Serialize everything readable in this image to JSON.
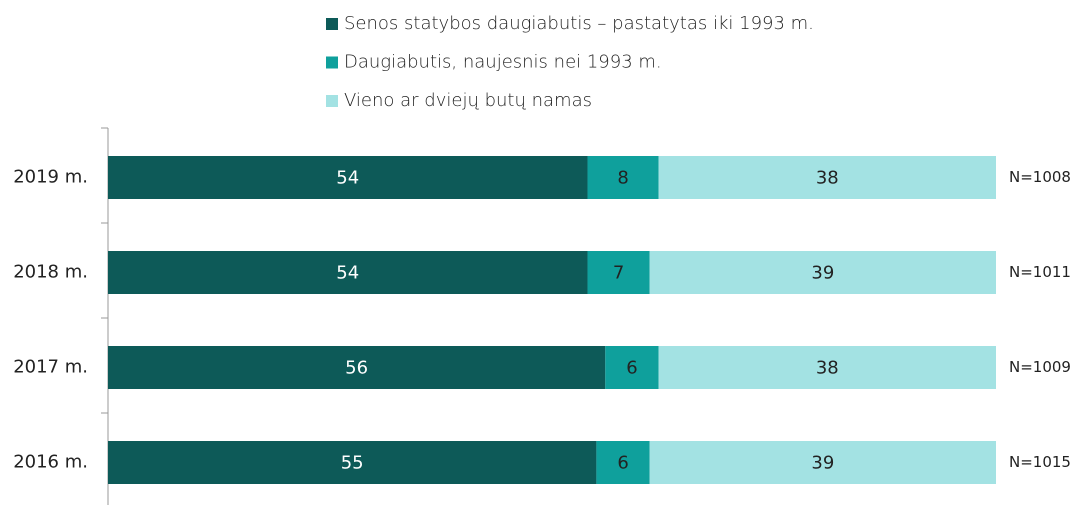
{
  "chart_data": {
    "type": "stacked-bar-horizontal",
    "categories": [
      "2019 m.",
      "2018 m.",
      "2017 m.",
      "2016 m."
    ],
    "series": [
      {
        "name": "Senos statybos daugiabutis – pastatytas iki 1993 m.",
        "color": "#0d5a58",
        "values": [
          54,
          54,
          56,
          55
        ]
      },
      {
        "name": "Daugiabutis, naujesnis nei 1993 m.",
        "color": "#0fa09c",
        "values": [
          8,
          7,
          6,
          6
        ]
      },
      {
        "name": "Vieno ar dviejų butų namas",
        "color": "#a3e2e3",
        "values": [
          38,
          39,
          38,
          39
        ]
      }
    ],
    "annotations": [
      "N=1008",
      "N=1011",
      "N=1009",
      "N=1015"
    ],
    "xlim": [
      0,
      100
    ]
  }
}
